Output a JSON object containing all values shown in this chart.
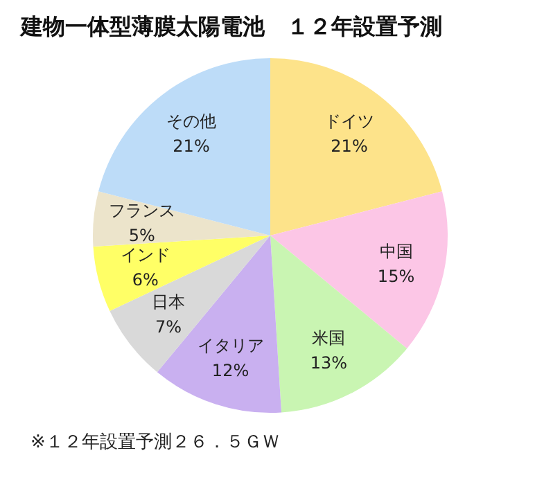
{
  "chart_data": {
    "type": "pie",
    "title": "建物一体型薄膜太陽電池　１２年設置予測",
    "categories": [
      "ドイツ",
      "中国",
      "米国",
      "イタリア",
      "日本",
      "インド",
      "フランス",
      "その他"
    ],
    "values": [
      21,
      15,
      13,
      12,
      7,
      6,
      5,
      21
    ],
    "value_labels": [
      "21%",
      "15%",
      "13%",
      "12%",
      "7%",
      "6%",
      "5%",
      "21%"
    ],
    "colors": [
      "#fde38a",
      "#fcc6e6",
      "#c9f5b2",
      "#c9b0f0",
      "#d9d9d9",
      "#ffff66",
      "#ece4cb",
      "#bddcf8"
    ],
    "annotations": [
      "※１２年設置予測２６．５ＧＷ"
    ],
    "legend": false
  }
}
